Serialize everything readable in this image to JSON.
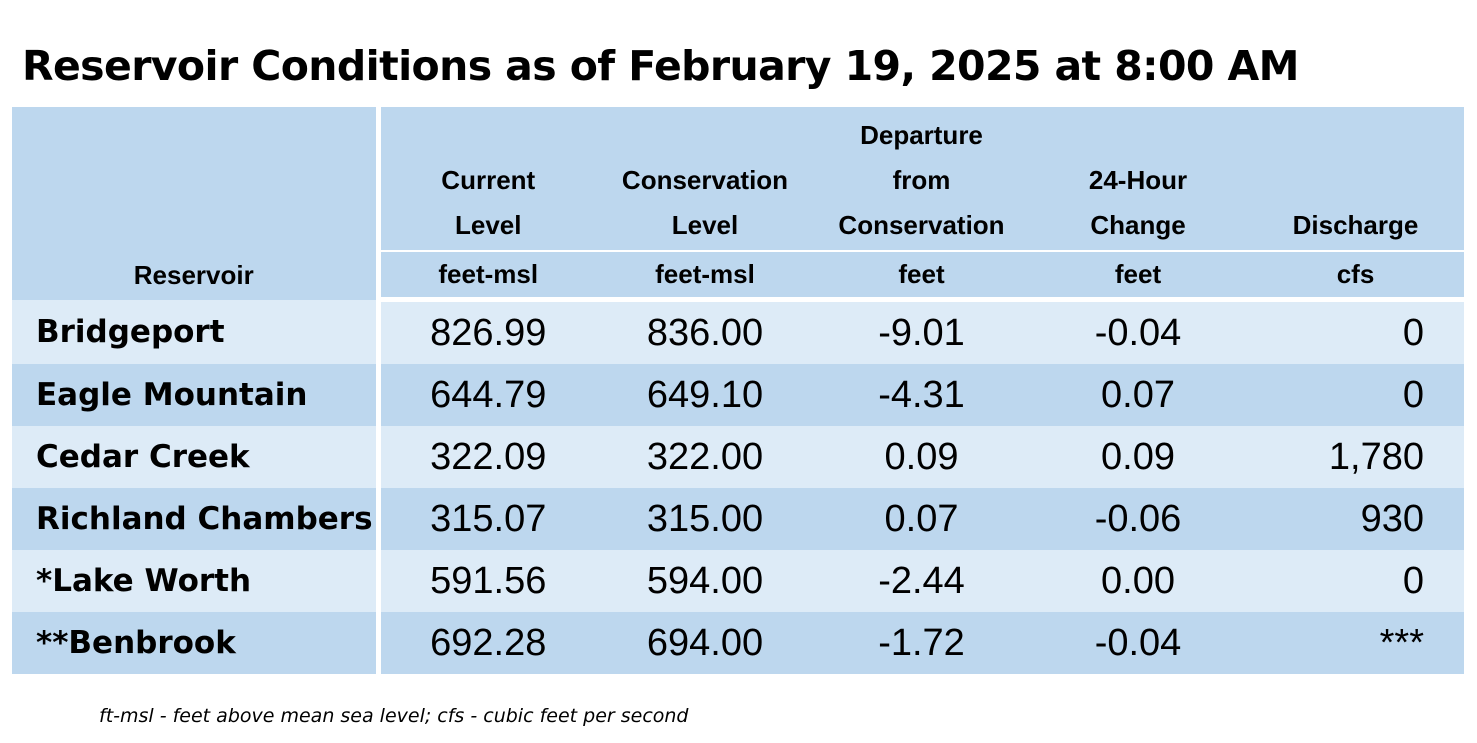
{
  "title": "Reservoir Conditions as of February 19, 2025 at 8:00 AM",
  "table": {
    "headers": [
      {
        "label_lines": [
          "Reservoir"
        ],
        "unit": ""
      },
      {
        "label_lines": [
          "Current",
          "Level"
        ],
        "unit": "feet-msl"
      },
      {
        "label_lines": [
          "Conservation",
          "Level"
        ],
        "unit": "feet-msl"
      },
      {
        "label_lines": [
          "Departure",
          "from",
          "Conservation"
        ],
        "unit": "feet"
      },
      {
        "label_lines": [
          "24-Hour",
          "Change"
        ],
        "unit": "feet"
      },
      {
        "label_lines": [
          "Discharge"
        ],
        "unit": "cfs"
      }
    ],
    "rows": [
      {
        "name": "Bridgeport",
        "current": "826.99",
        "conservation": "836.00",
        "departure": "-9.01",
        "change": "-0.04",
        "discharge": "0"
      },
      {
        "name": "Eagle Mountain",
        "current": "644.79",
        "conservation": "649.10",
        "departure": "-4.31",
        "change": "0.07",
        "discharge": "0"
      },
      {
        "name": "Cedar Creek",
        "current": "322.09",
        "conservation": "322.00",
        "departure": "0.09",
        "change": "0.09",
        "discharge": "1,780"
      },
      {
        "name": "Richland Chambers",
        "current": "315.07",
        "conservation": "315.00",
        "departure": "0.07",
        "change": "-0.06",
        "discharge": "930"
      },
      {
        "name": "*Lake Worth",
        "current": "591.56",
        "conservation": "594.00",
        "departure": "-2.44",
        "change": "0.00",
        "discharge": "0"
      },
      {
        "name": "**Benbrook",
        "current": "692.28",
        "conservation": "694.00",
        "departure": "-1.72",
        "change": "-0.04",
        "discharge": "***"
      }
    ]
  },
  "footnote": "ft-msl - feet above mean sea level; cfs - cubic feet per second",
  "colors": {
    "header_bg": "#bdd7ee",
    "row_light": "#ddebf7",
    "row_dark": "#bdd7ee"
  }
}
